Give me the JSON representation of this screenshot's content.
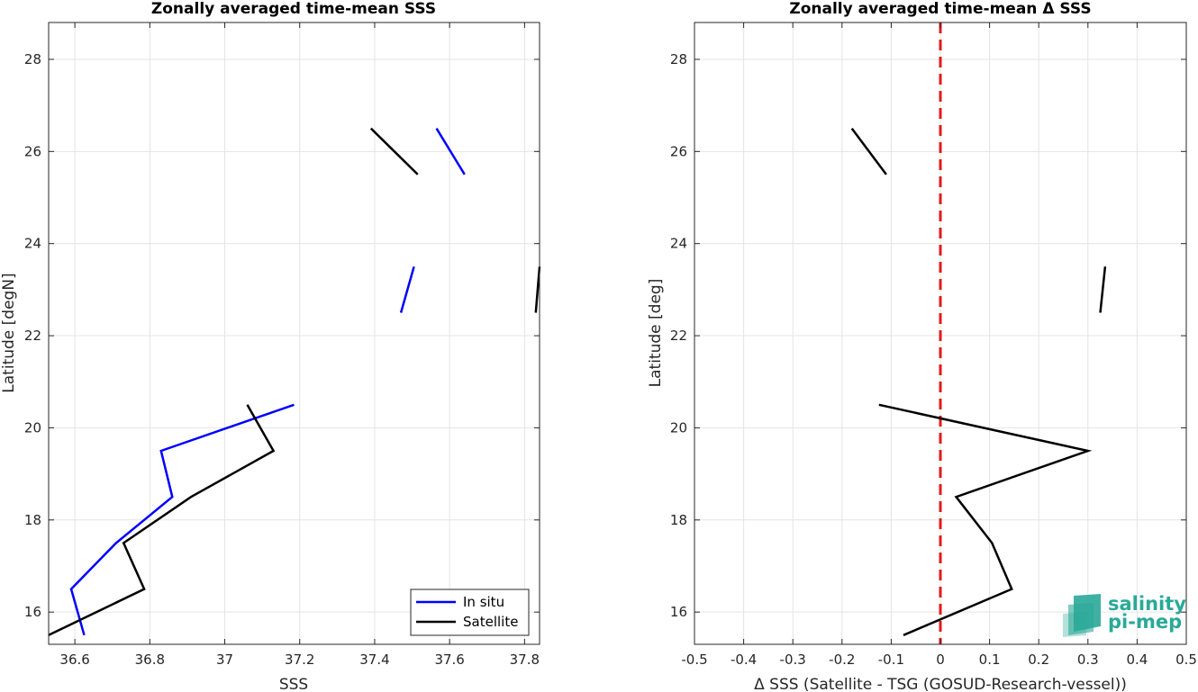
{
  "colors": {
    "in_situ": "#0000ff",
    "satellite": "#000000",
    "zero_line": "#e41a1c",
    "logo": "#2aa998"
  },
  "logo": {
    "line1": "salinity",
    "line2": "pi-mep"
  },
  "chart_data": [
    {
      "type": "line",
      "title": "Zonally averaged time-mean SSS",
      "xlabel": "SSS",
      "ylabel": "Latitude [degN]",
      "xlim": [
        36.53,
        37.84
      ],
      "ylim": [
        15.3,
        28.8
      ],
      "xticks": [
        36.6,
        36.8,
        37,
        37.2,
        37.4,
        37.6,
        37.8
      ],
      "xticklabels": [
        "36.6",
        "36.8",
        "37",
        "37.2",
        "37.4",
        "37.6",
        "37.8"
      ],
      "yticks": [
        16,
        18,
        20,
        22,
        24,
        26,
        28
      ],
      "yticklabels": [
        "16",
        "18",
        "20",
        "22",
        "24",
        "26",
        "28"
      ],
      "grid": true,
      "legend": "bottom-right",
      "series": [
        {
          "name": "In situ",
          "color_key": "in_situ",
          "segments": [
            [
              [
                36.625,
                15.5
              ],
              [
                36.59,
                16.5
              ],
              [
                36.71,
                17.5
              ],
              [
                36.86,
                18.5
              ],
              [
                36.83,
                19.5
              ],
              [
                37.185,
                20.5
              ]
            ],
            [
              [
                37.47,
                22.5
              ],
              [
                37.505,
                23.5
              ]
            ],
            [
              [
                37.565,
                26.5
              ],
              [
                37.64,
                25.5
              ]
            ]
          ]
        },
        {
          "name": "Satellite",
          "color_key": "satellite",
          "segments": [
            [
              [
                36.53,
                15.5
              ],
              [
                36.785,
                16.5
              ],
              [
                36.73,
                17.5
              ],
              [
                36.91,
                18.5
              ],
              [
                37.13,
                19.5
              ],
              [
                37.06,
                20.5
              ]
            ],
            [
              [
                37.83,
                22.5
              ],
              [
                37.84,
                23.5
              ]
            ],
            [
              [
                37.39,
                26.5
              ],
              [
                37.515,
                25.5
              ]
            ]
          ]
        }
      ]
    },
    {
      "type": "line",
      "title": "Zonally averaged time-mean Δ SSS",
      "xlabel": "Δ SSS (Satellite - TSG (GOSUD-Research-vessel))",
      "ylabel": "Latitude [deg]",
      "xlim": [
        -0.5,
        0.5
      ],
      "ylim": [
        15.3,
        28.8
      ],
      "xticks": [
        -0.5,
        -0.4,
        -0.3,
        -0.2,
        -0.1,
        0,
        0.1,
        0.2,
        0.3,
        0.4,
        0.5
      ],
      "xticklabels": [
        "-0.5",
        "-0.4",
        "-0.3",
        "-0.2",
        "-0.1",
        "0",
        "0.1",
        "0.2",
        "0.3",
        "0.4",
        "0.5"
      ],
      "yticks": [
        16,
        18,
        20,
        22,
        24,
        26,
        28
      ],
      "yticklabels": [
        "16",
        "18",
        "20",
        "22",
        "24",
        "26",
        "28"
      ],
      "grid": true,
      "reference_line": {
        "x": 0,
        "style": "dashed",
        "color_key": "zero_line"
      },
      "series": [
        {
          "color_key": "satellite",
          "segments": [
            [
              [
                -0.075,
                15.5
              ],
              [
                0.145,
                16.5
              ],
              [
                0.105,
                17.5
              ],
              [
                0.032,
                18.5
              ],
              [
                0.3,
                19.5
              ],
              [
                -0.125,
                20.5
              ]
            ],
            [
              [
                0.325,
                22.5
              ],
              [
                0.335,
                23.5
              ]
            ],
            [
              [
                -0.18,
                26.5
              ],
              [
                -0.11,
                25.5
              ]
            ]
          ]
        }
      ]
    }
  ]
}
